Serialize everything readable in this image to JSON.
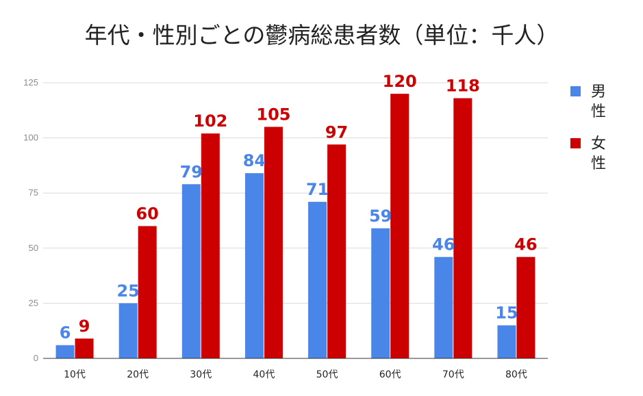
{
  "chart_data": {
    "type": "bar",
    "title": "年代・性別ごとの鬱病総患者数（単位：千人）",
    "categories": [
      "10代",
      "20代",
      "30代",
      "40代",
      "50代",
      "60代",
      "70代",
      "80代"
    ],
    "series": [
      {
        "name": "男性",
        "values": [
          6,
          25,
          79,
          84,
          71,
          59,
          46,
          15
        ],
        "color": "#4a86e8"
      },
      {
        "name": "女性",
        "values": [
          9,
          60,
          102,
          105,
          97,
          120,
          118,
          46
        ],
        "color": "#cc0000"
      }
    ],
    "yticks": [
      0,
      25,
      50,
      75,
      100,
      125
    ],
    "ylim": [
      0,
      125
    ],
    "grid": true,
    "legend_position": "right"
  }
}
